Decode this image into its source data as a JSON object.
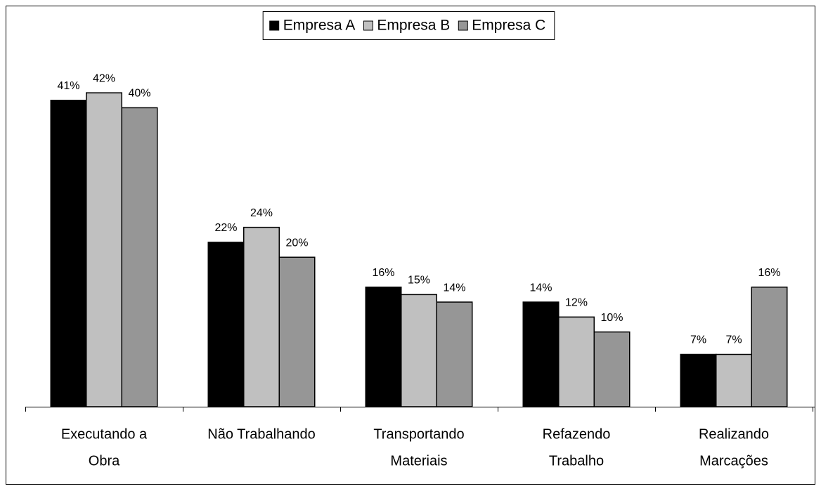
{
  "chart_data": {
    "type": "bar",
    "categories": [
      [
        "Executando a",
        "Obra"
      ],
      [
        "Não Trabalhando"
      ],
      [
        "Transportando",
        "Materiais"
      ],
      [
        "Refazendo",
        "Trabalho"
      ],
      [
        "Realizando",
        "Marcações"
      ]
    ],
    "series": [
      {
        "name": "Empresa A",
        "color": "#000000",
        "values": [
          41,
          22,
          16,
          14,
          7
        ],
        "value_labels": [
          "41%",
          "22%",
          "16%",
          "14%",
          "7%"
        ]
      },
      {
        "name": "Empresa B",
        "color": "#c0c0c0",
        "values": [
          42,
          24,
          15,
          12,
          7
        ],
        "value_labels": [
          "42%",
          "24%",
          "15%",
          "12%",
          "7%"
        ]
      },
      {
        "name": "Empresa C",
        "color": "#969696",
        "values": [
          40,
          20,
          14,
          10,
          16
        ],
        "value_labels": [
          "40%",
          "20%",
          "14%",
          "10%",
          "16%"
        ]
      }
    ],
    "ylim": [
      0,
      50
    ],
    "legend": "top"
  }
}
